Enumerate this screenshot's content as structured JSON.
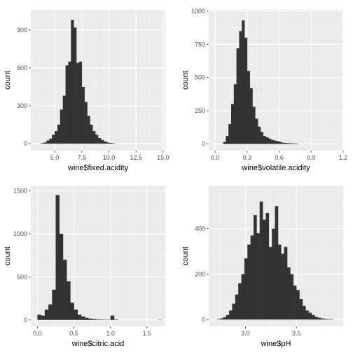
{
  "colors": {
    "panel": "#ebebeb",
    "grid_major": "#ffffff",
    "grid_minor": "#f5f5f5",
    "bar": "#333333",
    "tick_text": "#4d4d4d",
    "title_text": "#000000"
  },
  "chart_data": [
    {
      "type": "bar",
      "xlabel": "wine$fixed.acidity",
      "ylabel": "count",
      "xlim": [
        2.8,
        15.2
      ],
      "ylim": [
        -55,
        1060
      ],
      "xticks": [
        5.0,
        7.5,
        10.0,
        12.5,
        15.0
      ],
      "xtick_labels": [
        "5.0",
        "7.5",
        "10.0",
        "12.5",
        "15.0"
      ],
      "yticks": [
        0,
        300,
        600,
        900
      ],
      "ytick_labels": [
        "0",
        "300",
        "600",
        "900"
      ],
      "bin_width": 0.25,
      "bins_start": [
        3.75,
        4.0,
        4.25,
        4.5,
        4.75,
        5.0,
        5.25,
        5.5,
        5.75,
        6.0,
        6.25,
        6.5,
        6.75,
        7.0,
        7.25,
        7.5,
        7.75,
        8.0,
        8.25,
        8.5,
        8.75,
        9.0,
        9.25,
        9.5,
        9.75,
        10.0,
        10.25
      ],
      "counts": [
        5,
        10,
        25,
        40,
        70,
        100,
        150,
        270,
        380,
        620,
        650,
        980,
        920,
        640,
        650,
        450,
        330,
        220,
        150,
        100,
        70,
        45,
        30,
        18,
        10,
        6,
        4
      ]
    },
    {
      "type": "bar",
      "xlabel": "wine$volatile.acidity",
      "ylabel": "count",
      "xlim": [
        -0.06,
        1.2
      ],
      "ylim": [
        -50,
        1010
      ],
      "xticks": [
        0.0,
        0.3,
        0.6,
        0.9,
        1.2
      ],
      "xtick_labels": [
        "0.0",
        "0.3",
        "0.6",
        "0.9",
        "1.2"
      ],
      "yticks": [
        0,
        250,
        500,
        750,
        1000
      ],
      "ytick_labels": [
        "0",
        "250",
        "500",
        "750",
        "1000"
      ],
      "bin_width": 0.025,
      "bins_start": [
        0.075,
        0.1,
        0.125,
        0.15,
        0.175,
        0.2,
        0.225,
        0.25,
        0.275,
        0.3,
        0.325,
        0.35,
        0.375,
        0.4,
        0.425,
        0.45,
        0.475,
        0.5,
        0.525,
        0.55,
        0.575,
        0.6,
        0.625,
        0.65,
        0.675,
        0.7,
        0.725,
        0.75
      ],
      "counts": [
        15,
        60,
        150,
        300,
        450,
        720,
        850,
        930,
        800,
        550,
        420,
        280,
        190,
        130,
        90,
        60,
        50,
        40,
        30,
        25,
        20,
        15,
        10,
        8,
        6,
        5,
        4,
        3
      ]
    },
    {
      "type": "bar",
      "xlabel": "wine$citric.acid",
      "ylabel": "count",
      "xlim": [
        -0.09,
        1.75
      ],
      "ylim": [
        -75,
        1560
      ],
      "xticks": [
        0.0,
        0.5,
        1.0,
        1.5
      ],
      "xtick_labels": [
        "0.0",
        "0.5",
        "1.0",
        "1.5"
      ],
      "yticks": [
        0,
        500,
        1000,
        1500
      ],
      "ytick_labels": [
        "0",
        "500",
        "1000",
        "1500"
      ],
      "bin_width": 0.05,
      "bins_start": [
        0.0,
        0.05,
        0.1,
        0.15,
        0.2,
        0.25,
        0.3,
        0.35,
        0.4,
        0.45,
        0.5,
        0.55,
        0.6,
        0.65,
        0.7,
        0.75,
        0.8,
        0.85,
        0.9,
        0.95,
        1.0,
        1.05,
        1.65
      ],
      "counts": [
        60,
        50,
        120,
        180,
        350,
        1450,
        1000,
        700,
        450,
        200,
        120,
        60,
        40,
        25,
        15,
        10,
        5,
        5,
        3,
        3,
        50,
        5,
        3
      ]
    },
    {
      "type": "bar",
      "xlabel": "wine$pH",
      "ylabel": "count",
      "xlim": [
        2.64,
        3.96
      ],
      "ylim": [
        -30,
        590
      ],
      "xticks": [
        3.0,
        3.5
      ],
      "xtick_labels": [
        "3.0",
        "3.5"
      ],
      "yticks": [
        0,
        200,
        400
      ],
      "ytick_labels": [
        "0",
        "200",
        "400"
      ],
      "bin_width": 0.03,
      "bins_start": [
        2.72,
        2.75,
        2.78,
        2.81,
        2.84,
        2.87,
        2.9,
        2.93,
        2.96,
        2.99,
        3.02,
        3.05,
        3.08,
        3.11,
        3.14,
        3.17,
        3.2,
        3.23,
        3.26,
        3.29,
        3.32,
        3.35,
        3.38,
        3.41,
        3.44,
        3.47,
        3.5,
        3.53,
        3.56,
        3.59,
        3.62,
        3.65,
        3.68,
        3.71,
        3.74,
        3.77,
        3.8,
        3.83
      ],
      "counts": [
        2,
        5,
        10,
        20,
        40,
        70,
        110,
        160,
        200,
        270,
        330,
        370,
        460,
        380,
        520,
        440,
        470,
        320,
        400,
        500,
        330,
        290,
        320,
        230,
        200,
        150,
        130,
        90,
        60,
        40,
        30,
        20,
        12,
        8,
        5,
        3,
        2,
        2
      ]
    }
  ]
}
